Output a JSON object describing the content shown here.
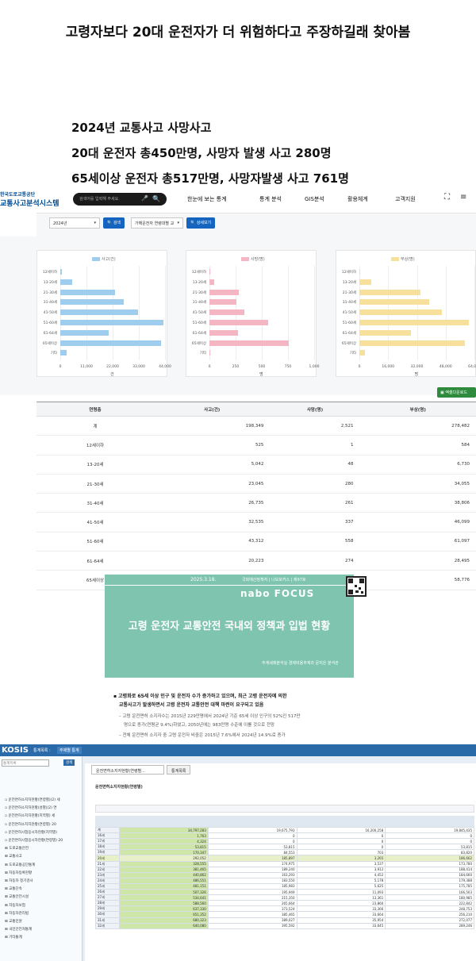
{
  "post": {
    "title": "고령자보다 20대 운전자가 더 위험하다고 주장하길래 찾아봄",
    "lines": [
      "2024년 교통사고 사망사고",
      "20대 운전자 총450만명, 사망자 발생 사고 280명",
      "65세이상 운전자 총517만명, 사망자발생 사고 761명"
    ]
  },
  "site": {
    "logo_small": "한국도로교통공단",
    "logo_big": "교통사고분석시스템",
    "search_placeholder": "검색어를 입력해 주세요.",
    "nav": [
      "한눈에 보는 통계",
      "통계 분석",
      "GIS분석",
      "활용체계",
      "고객지원"
    ]
  },
  "filter": {
    "year": "2024년",
    "search_btn": "검색",
    "category": "가해운전자 연령대별 교",
    "detail_btn": "상세보기",
    "excel_btn": "엑셀다운로드"
  },
  "chart_data": [
    {
      "type": "bar",
      "orientation": "horizontal",
      "categories": [
        "12세이하",
        "13-20세",
        "21-30세",
        "31-40세",
        "41-50세",
        "51-60세",
        "61-64세",
        "65세이상",
        "기타"
      ],
      "series": [
        {
          "name": "사고(건)",
          "values": [
            525,
            5042,
            23045,
            26735,
            32535,
            43312,
            20223,
            42369,
            2500
          ]
        }
      ],
      "xlim": [
        0,
        44000
      ],
      "xticks": [
        "0",
        "11,000",
        "22,000",
        "33,000",
        "44,000"
      ],
      "xlabel": "건",
      "color": "#9fcdee",
      "legend": "top"
    },
    {
      "type": "bar",
      "orientation": "horizontal",
      "categories": [
        "12세이하",
        "13-20세",
        "21-30세",
        "31-40세",
        "41-50세",
        "51-60세",
        "61-64세",
        "65세이상",
        "기타"
      ],
      "series": [
        {
          "name": "사망(명)",
          "values": [
            1,
            48,
            280,
            261,
            337,
            558,
            274,
            761,
            8
          ]
        }
      ],
      "xlim": [
        0,
        1000
      ],
      "xticks": [
        "0",
        "250",
        "500",
        "750",
        "1,000"
      ],
      "xlabel": "명",
      "color": "#f4b6c2",
      "legend": "top"
    },
    {
      "type": "bar",
      "orientation": "horizontal",
      "categories": [
        "12세이하",
        "13-20세",
        "21-30세",
        "31-40세",
        "41-50세",
        "51-60세",
        "61-64세",
        "65세이상",
        "기타"
      ],
      "series": [
        {
          "name": "부상(명)",
          "values": [
            584,
            6730,
            34055,
            38806,
            46099,
            61097,
            28495,
            58776,
            3200
          ]
        }
      ],
      "xlim": [
        0,
        64000
      ],
      "xticks": [
        "0",
        "16,000",
        "32,000",
        "48,000",
        "64,000"
      ],
      "xlabel": "명",
      "color": "#f6e09c",
      "legend": "top"
    }
  ],
  "table": {
    "headers": [
      "연령층",
      "사고(건)",
      "사망(명)",
      "부상(명)"
    ],
    "rows": [
      [
        "계",
        "198,349",
        "2,521",
        "278,482"
      ],
      [
        "12세이하",
        "525",
        "1",
        "584"
      ],
      [
        "13-20세",
        "5,042",
        "48",
        "6,730"
      ],
      [
        "21-30세",
        "23,045",
        "280",
        "34,055"
      ],
      [
        "31-40세",
        "26,735",
        "261",
        "38,806"
      ],
      [
        "41-50세",
        "32,535",
        "337",
        "46,099"
      ],
      [
        "51-60세",
        "43,312",
        "558",
        "61,097"
      ],
      [
        "61-64세",
        "20,223",
        "274",
        "28,495"
      ],
      [
        "65세이상",
        "42,369",
        "761",
        "58,776"
      ]
    ]
  },
  "nabo": {
    "date": "2025.3.18.",
    "info": "국회예산정책처 | 나보포커스 | 제97호",
    "logo": "nabo FOCUS",
    "title": "고령 운전자 교통안전 국내외 정책과 입법 현황",
    "author": "추계세제분석실 경제비용추계과 문지은 분석관",
    "bullet1": "고령화로 65세 이상 인구 및 운전자 수가 증가하고 있으며, 최근 고령 운전자에 의한",
    "bullet1b": "교통사고가 발생하면서 고령 운전자 교통안전 대책 마련이 요구되고 있음",
    "sub1": "– 고령 운전면허 소지자수는 2015년 229만명에서 2024년 기준 65세 이상 인구의 52%인 517만",
    "sub1b": "명으로 증가(연평균 9.4%)하였고, 2050년에는 983만명 수준에 이를 것으로 전망",
    "sub2": "– 전체 운전면허 소지자 중 고령 운전자 비중은 2015년 7.6%에서 2024년 14.9%로 증가"
  },
  "kosis": {
    "logo": "KOSIS",
    "top_label": "통계목록 :",
    "top_sel": "주제별 통계",
    "search_label": "통계목록",
    "search_btn": "검색",
    "tab1": "운전면허소지자현황(연령별...",
    "tab2": "통계목록",
    "sidebar": [
      "운전면허소지자현황(연령별)(2) 세",
      "운전면허소지자현황(성별)(2) 연",
      "운전면허소지자현황(지역별) 세",
      "운전면허소지자현황(연령별) 20",
      "운전면허시험응시자현황(지역별)",
      "운전면허시험응시자현황(연령별) 20",
      "도로교통안전",
      "교통사고",
      "도로교통공단통계",
      "자동차등록현황",
      "자동차 정기검사",
      "교통단속",
      "교통안전시설",
      "자동차보험",
      "자동차관리법",
      "교통민원",
      "국민안전처통계",
      "기타통계"
    ],
    "table_title": "운전면허소지자현황(연령별)",
    "rows": [
      [
        "계",
        "34,797,283",
        "19,675,793",
        "16,200,258",
        "19,845,435"
      ],
      [
        "16세",
        "1,763",
        "0",
        "0",
        "0"
      ],
      [
        "17세",
        "4,324",
        "0",
        "0",
        "0"
      ],
      [
        "18세",
        "53,815",
        "53,815",
        "0",
        "53,815"
      ],
      [
        "19세",
        "170,347",
        "84,553",
        "703",
        "83,820"
      ],
      [
        "20세",
        "292,052",
        "185,897",
        "3,265",
        "186,662"
      ],
      [
        "21세",
        "328,555",
        "174,975",
        "3,537",
        "173,780"
      ],
      [
        "22세",
        "381,465",
        "189,240",
        "3,912",
        "188,414"
      ],
      [
        "23세",
        "440,862",
        "163,293",
        "4,452",
        "184,660"
      ],
      [
        "24세",
        "486,551",
        "183,550",
        "5,178",
        "179,388"
      ],
      [
        "25세",
        "481,151",
        "185,983",
        "5,625",
        "175,785"
      ],
      [
        "26세",
        "507,326",
        "195,949",
        "11,093",
        "166,503"
      ],
      [
        "27세",
        "534,641",
        "215,350",
        "13,361",
        "180,985"
      ],
      [
        "28세",
        "588,560",
        "265,664",
        "23,860",
        "222,842"
      ],
      [
        "29세",
        "637,330",
        "373,524",
        "33,366",
        "248,753"
      ],
      [
        "30세",
        "651,352",
        "385,465",
        "33,664",
        "256,210"
      ],
      [
        "31세",
        "680,323",
        "389,027",
        "35,954",
        "272,077"
      ],
      [
        "32세",
        "640,080",
        "395,592",
        "33,645",
        "289,246"
      ]
    ]
  }
}
